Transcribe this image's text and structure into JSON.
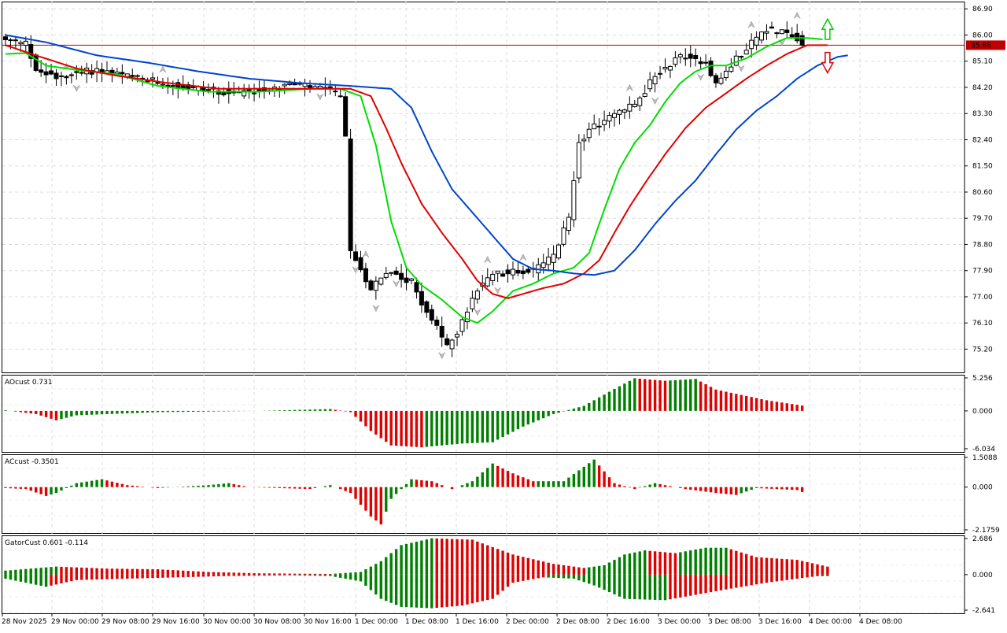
{
  "chart_data": [
    {
      "type": "candlestick",
      "pane": "price",
      "y_ticks": [
        "86.90",
        "86.00",
        "85.10",
        "84.20",
        "83.30",
        "82.40",
        "81.50",
        "80.60",
        "79.70",
        "78.80",
        "77.90",
        "77.00",
        "76.10",
        "75.20"
      ],
      "y_tick_values": [
        86.9,
        86.0,
        85.1,
        84.2,
        83.3,
        82.4,
        81.5,
        80.6,
        79.7,
        78.8,
        77.9,
        77.0,
        76.1,
        75.2
      ],
      "ylim": [
        74.4,
        87.15
      ],
      "current_price_label": "85.65",
      "current_price": 85.65,
      "x_labels": [
        "28 Nov 2025",
        "29 Nov 00:00",
        "29 Nov 08:00",
        "29 Nov 16:00",
        "30 Nov 00:00",
        "30 Nov 08:00",
        "30 Nov 16:00",
        "1 Dec 00:00",
        "1 Dec 08:00",
        "1 Dec 16:00",
        "2 Dec 00:00",
        "2 Dec 08:00",
        "2 Dec 16:00",
        "3 Dec 00:00",
        "3 Dec 08:00",
        "3 Dec 16:00",
        "4 Dec 00:00",
        "4 Dec 08:00"
      ],
      "bar_count": 158,
      "close_key_points": [
        [
          0,
          85.8
        ],
        [
          4,
          85.7
        ],
        [
          6,
          84.8
        ],
        [
          10,
          84.6
        ],
        [
          18,
          84.8
        ],
        [
          26,
          84.5
        ],
        [
          36,
          84.2
        ],
        [
          46,
          84.0
        ],
        [
          56,
          84.3
        ],
        [
          64,
          84.1
        ],
        [
          66,
          83.9
        ],
        [
          67,
          82.4
        ],
        [
          68,
          78.6
        ],
        [
          72,
          77.3
        ],
        [
          76,
          77.9
        ],
        [
          80,
          77.5
        ],
        [
          83,
          76.5
        ],
        [
          87,
          75.3
        ],
        [
          90,
          76.1
        ],
        [
          93,
          77.3
        ],
        [
          96,
          77.8
        ],
        [
          104,
          77.9
        ],
        [
          108,
          78.4
        ],
        [
          111,
          79.7
        ],
        [
          113,
          82.4
        ],
        [
          118,
          83.1
        ],
        [
          124,
          83.6
        ],
        [
          128,
          84.6
        ],
        [
          133,
          85.3
        ],
        [
          138,
          85.1
        ],
        [
          140,
          84.3
        ],
        [
          146,
          85.6
        ],
        [
          150,
          86.2
        ],
        [
          154,
          86.1
        ],
        [
          156,
          85.9
        ],
        [
          157,
          85.7
        ]
      ],
      "ma_lines": [
        {
          "color": "#00dd00",
          "points": [
            [
              0,
              85.35
            ],
            [
              4,
              85.38
            ],
            [
              8,
              84.95
            ],
            [
              14,
              84.8
            ],
            [
              22,
              84.65
            ],
            [
              30,
              84.25
            ],
            [
              40,
              84.05
            ],
            [
              50,
              84.05
            ],
            [
              60,
              84.15
            ],
            [
              66,
              84.15
            ],
            [
              70,
              83.9
            ],
            [
              73,
              82.2
            ],
            [
              76,
              79.6
            ],
            [
              79,
              78.0
            ],
            [
              82,
              77.4
            ],
            [
              86,
              76.9
            ],
            [
              90,
              76.3
            ],
            [
              93,
              76.1
            ],
            [
              96,
              76.5
            ],
            [
              100,
              77.2
            ],
            [
              104,
              77.45
            ],
            [
              108,
              77.8
            ],
            [
              112,
              78.0
            ],
            [
              115,
              78.5
            ],
            [
              118,
              80.0
            ],
            [
              121,
              81.4
            ],
            [
              124,
              82.3
            ],
            [
              127,
              82.9
            ],
            [
              130,
              83.7
            ],
            [
              133,
              84.35
            ],
            [
              136,
              84.75
            ],
            [
              139,
              84.95
            ],
            [
              142,
              84.95
            ],
            [
              146,
              85.2
            ],
            [
              150,
              85.6
            ],
            [
              154,
              85.9
            ],
            [
              158,
              85.9
            ],
            [
              161,
              85.85
            ]
          ]
        },
        {
          "color": "#e00000",
          "points": [
            [
              0,
              85.65
            ],
            [
              6,
              85.3
            ],
            [
              14,
              84.85
            ],
            [
              22,
              84.6
            ],
            [
              32,
              84.35
            ],
            [
              42,
              84.15
            ],
            [
              52,
              84.15
            ],
            [
              62,
              84.15
            ],
            [
              68,
              84.15
            ],
            [
              72,
              83.9
            ],
            [
              75,
              82.8
            ],
            [
              78,
              81.6
            ],
            [
              82,
              80.2
            ],
            [
              86,
              79.2
            ],
            [
              90,
              78.3
            ],
            [
              93,
              77.55
            ],
            [
              96,
              77.1
            ],
            [
              99,
              76.95
            ],
            [
              102,
              77.1
            ],
            [
              106,
              77.3
            ],
            [
              110,
              77.45
            ],
            [
              114,
              77.8
            ],
            [
              117,
              78.25
            ],
            [
              120,
              79.2
            ],
            [
              123,
              80.1
            ],
            [
              126,
              80.9
            ],
            [
              130,
              81.9
            ],
            [
              134,
              82.8
            ],
            [
              138,
              83.5
            ],
            [
              142,
              84.0
            ],
            [
              146,
              84.5
            ],
            [
              150,
              84.95
            ],
            [
              154,
              85.35
            ],
            [
              158,
              85.65
            ],
            [
              162,
              85.65
            ]
          ]
        },
        {
          "color": "#0044cc",
          "points": [
            [
              0,
              86.0
            ],
            [
              8,
              85.75
            ],
            [
              18,
              85.3
            ],
            [
              28,
              85.05
            ],
            [
              38,
              84.75
            ],
            [
              48,
              84.5
            ],
            [
              58,
              84.35
            ],
            [
              68,
              84.25
            ],
            [
              76,
              84.15
            ],
            [
              80,
              83.5
            ],
            [
              84,
              82.0
            ],
            [
              88,
              80.7
            ],
            [
              92,
              79.9
            ],
            [
              96,
              79.1
            ],
            [
              100,
              78.3
            ],
            [
              104,
              77.95
            ],
            [
              108,
              77.9
            ],
            [
              112,
              77.8
            ],
            [
              116,
              77.75
            ],
            [
              120,
              77.9
            ],
            [
              124,
              78.6
            ],
            [
              128,
              79.5
            ],
            [
              132,
              80.3
            ],
            [
              136,
              81.0
            ],
            [
              140,
              81.9
            ],
            [
              144,
              82.75
            ],
            [
              148,
              83.4
            ],
            [
              152,
              83.9
            ],
            [
              156,
              84.5
            ],
            [
              160,
              84.95
            ],
            [
              164,
              85.25
            ],
            [
              166,
              85.3
            ]
          ]
        }
      ],
      "fractal_markers": "up and down arrow marks above/below swing bars",
      "signal_arrows": [
        {
          "direction": "up",
          "color": "#00cc00"
        },
        {
          "direction": "down",
          "color": "#e00000"
        }
      ]
    },
    {
      "type": "bar",
      "pane": "AOcust",
      "label": "AOcust 0.731",
      "y_ticks": [
        "5.256",
        "0.000",
        "-6.034"
      ],
      "ylim": [
        -6.034,
        5.256
      ],
      "colors": {
        "up": "#008000",
        "down": "#e00000"
      },
      "key_points": [
        [
          0,
          0.1
        ],
        [
          6,
          -0.5
        ],
        [
          10,
          -1.5
        ],
        [
          14,
          -0.7
        ],
        [
          30,
          -0.2
        ],
        [
          50,
          0.0
        ],
        [
          64,
          0.3
        ],
        [
          68,
          -0.2
        ],
        [
          72,
          -3.2
        ],
        [
          76,
          -5.5
        ],
        [
          82,
          -5.8
        ],
        [
          90,
          -5.2
        ],
        [
          96,
          -5.0
        ],
        [
          102,
          -2.5
        ],
        [
          108,
          -0.5
        ],
        [
          114,
          0.8
        ],
        [
          120,
          3.5
        ],
        [
          124,
          5.2
        ],
        [
          130,
          4.8
        ],
        [
          136,
          5.1
        ],
        [
          140,
          3.4
        ],
        [
          150,
          1.7
        ],
        [
          158,
          0.73
        ]
      ]
    },
    {
      "type": "bar",
      "pane": "ACcust",
      "label": "ACcust -0.3501",
      "y_ticks": [
        "1.5088",
        "0.000",
        "-2.1759"
      ],
      "ylim": [
        -2.1759,
        1.5088
      ],
      "colors": {
        "up": "#008000",
        "down": "#e00000"
      },
      "key_points": [
        [
          0,
          -0.05
        ],
        [
          4,
          -0.1
        ],
        [
          8,
          -0.45
        ],
        [
          10,
          -0.3
        ],
        [
          14,
          0.2
        ],
        [
          19,
          0.4
        ],
        [
          24,
          0.1
        ],
        [
          30,
          -0.05
        ],
        [
          40,
          0.1
        ],
        [
          44,
          0.2
        ],
        [
          48,
          0.0
        ],
        [
          60,
          -0.1
        ],
        [
          64,
          0.1
        ],
        [
          68,
          -0.3
        ],
        [
          72,
          -1.5
        ],
        [
          74,
          -1.9
        ],
        [
          76,
          -0.6
        ],
        [
          80,
          0.4
        ],
        [
          84,
          0.3
        ],
        [
          88,
          -0.1
        ],
        [
          92,
          0.3
        ],
        [
          96,
          1.2
        ],
        [
          100,
          0.7
        ],
        [
          104,
          0.3
        ],
        [
          110,
          0.3
        ],
        [
          116,
          1.4
        ],
        [
          120,
          0.2
        ],
        [
          124,
          -0.1
        ],
        [
          128,
          0.2
        ],
        [
          134,
          -0.1
        ],
        [
          140,
          -0.3
        ],
        [
          144,
          -0.4
        ],
        [
          148,
          -0.05
        ],
        [
          156,
          -0.15
        ],
        [
          158,
          -0.35
        ]
      ]
    },
    {
      "type": "bar",
      "pane": "GatorCust",
      "label": "GatorCust 0.601 -0.114",
      "y_ticks": [
        "2.686",
        "0.000",
        "-2.641"
      ],
      "ylim": [
        -2.641,
        2.686
      ],
      "colors": {
        "up": "#008000",
        "down": "#e00000"
      },
      "upper_key_points": [
        [
          0,
          0.3
        ],
        [
          10,
          0.6
        ],
        [
          20,
          0.45
        ],
        [
          30,
          0.4
        ],
        [
          40,
          0.2
        ],
        [
          50,
          0.1
        ],
        [
          64,
          0.05
        ],
        [
          70,
          0.2
        ],
        [
          74,
          1.0
        ],
        [
          78,
          2.2
        ],
        [
          84,
          2.7
        ],
        [
          92,
          2.6
        ],
        [
          100,
          1.5
        ],
        [
          108,
          0.8
        ],
        [
          114,
          0.5
        ],
        [
          118,
          0.7
        ],
        [
          122,
          1.5
        ],
        [
          126,
          1.8
        ],
        [
          132,
          1.6
        ],
        [
          138,
          2.0
        ],
        [
          142,
          2.0
        ],
        [
          148,
          1.3
        ],
        [
          156,
          1.1
        ],
        [
          162,
          0.6
        ]
      ],
      "lower_key_points": [
        [
          0,
          -0.3
        ],
        [
          8,
          -0.9
        ],
        [
          14,
          -0.4
        ],
        [
          24,
          -0.3
        ],
        [
          34,
          -0.2
        ],
        [
          44,
          -0.1
        ],
        [
          56,
          -0.05
        ],
        [
          64,
          -0.1
        ],
        [
          70,
          -0.5
        ],
        [
          74,
          -1.8
        ],
        [
          78,
          -2.4
        ],
        [
          84,
          -2.5
        ],
        [
          90,
          -2.3
        ],
        [
          96,
          -1.8
        ],
        [
          100,
          -0.6
        ],
        [
          106,
          -0.2
        ],
        [
          112,
          -0.3
        ],
        [
          116,
          -0.8
        ],
        [
          122,
          -1.8
        ],
        [
          130,
          -1.9
        ],
        [
          136,
          -1.5
        ],
        [
          142,
          -1.1
        ],
        [
          150,
          -0.6
        ],
        [
          156,
          -0.3
        ],
        [
          160,
          -0.11
        ]
      ]
    }
  ]
}
